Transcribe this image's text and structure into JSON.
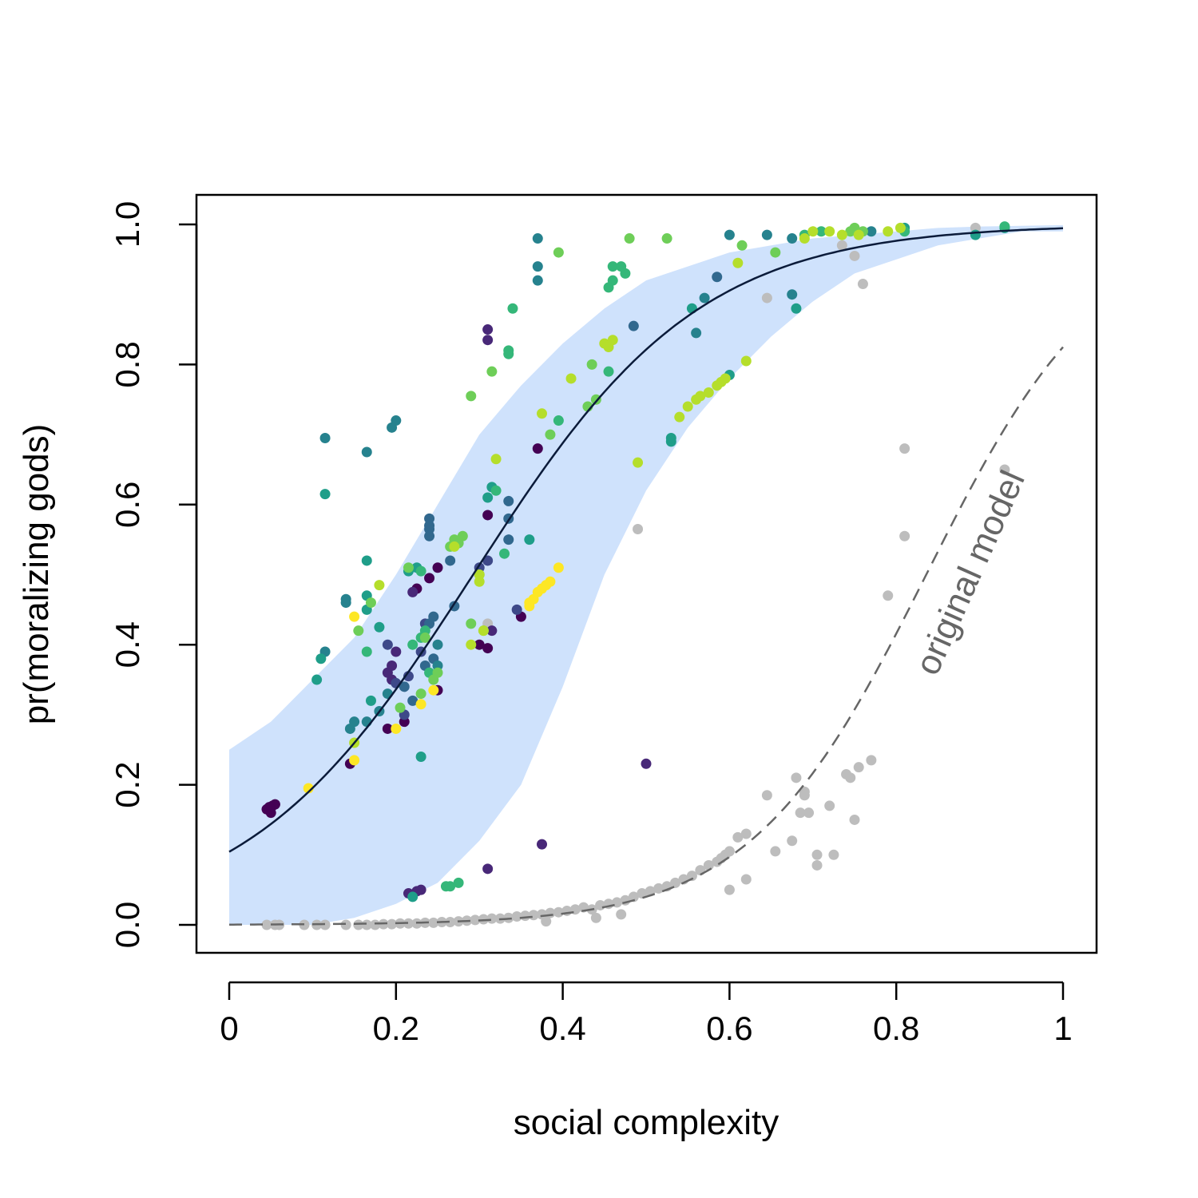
{
  "chart_data": {
    "type": "scatter",
    "xlabel": "social complexity",
    "ylabel": "pr(moralizing gods)",
    "xlim": [
      0,
      1
    ],
    "ylim": [
      0,
      1
    ],
    "x_ticks": [
      "0",
      "0.2",
      "0.4",
      "0.6",
      "0.8",
      "1"
    ],
    "y_ticks": [
      "0.0",
      "0.2",
      "0.4",
      "0.6",
      "0.8",
      "1.0"
    ],
    "annotation": "original model",
    "colors": {
      "band": "#cfe2fc",
      "fit_line": "#0b1b3a",
      "original_line": "#666666",
      "original_points": "#bdbdbd",
      "annotation": "#666666"
    },
    "fit_curve": {
      "type": "logistic",
      "intercept": -2.15,
      "slope": 7.35
    },
    "original_curve": {
      "type": "logistic",
      "intercept": -7.9,
      "slope": 9.45
    },
    "band": {
      "x": [
        0.0,
        0.05,
        0.1,
        0.15,
        0.2,
        0.25,
        0.3,
        0.35,
        0.4,
        0.45,
        0.5,
        0.55,
        0.6,
        0.65,
        0.7,
        0.75,
        0.8,
        0.85,
        0.9,
        0.95,
        1.0
      ],
      "upper": [
        0.25,
        0.29,
        0.35,
        0.41,
        0.5,
        0.6,
        0.7,
        0.77,
        0.83,
        0.88,
        0.92,
        0.94,
        0.96,
        0.97,
        0.98,
        0.985,
        0.99,
        0.995,
        0.997,
        0.998,
        0.999
      ],
      "lower": [
        0.0,
        0.0,
        0.0,
        0.01,
        0.03,
        0.06,
        0.12,
        0.2,
        0.34,
        0.5,
        0.62,
        0.71,
        0.78,
        0.84,
        0.89,
        0.93,
        0.95,
        0.97,
        0.98,
        0.99,
        0.99
      ]
    },
    "series": [
      {
        "color": "#440154",
        "points": [
          [
            0.045,
            0.165
          ],
          [
            0.05,
            0.16
          ],
          [
            0.052,
            0.17
          ],
          [
            0.055,
            0.172
          ],
          [
            0.048,
            0.168
          ],
          [
            0.145,
            0.23
          ],
          [
            0.19,
            0.28
          ],
          [
            0.21,
            0.29
          ],
          [
            0.225,
            0.48
          ],
          [
            0.24,
            0.495
          ],
          [
            0.25,
            0.51
          ],
          [
            0.25,
            0.335
          ],
          [
            0.31,
            0.395
          ],
          [
            0.31,
            0.585
          ],
          [
            0.35,
            0.44
          ],
          [
            0.37,
            0.68
          ],
          [
            0.3,
            0.4
          ]
        ]
      },
      {
        "color": "#482878",
        "points": [
          [
            0.19,
            0.36
          ],
          [
            0.195,
            0.37
          ],
          [
            0.2,
            0.39
          ],
          [
            0.215,
            0.045
          ],
          [
            0.225,
            0.048
          ],
          [
            0.23,
            0.05
          ],
          [
            0.22,
            0.475
          ],
          [
            0.31,
            0.85
          ],
          [
            0.31,
            0.835
          ],
          [
            0.5,
            0.23
          ],
          [
            0.375,
            0.115
          ],
          [
            0.31,
            0.08
          ],
          [
            0.315,
            0.42
          ],
          [
            0.195,
            0.35
          ]
        ]
      },
      {
        "color": "#3e4989",
        "points": [
          [
            0.19,
            0.4
          ],
          [
            0.2,
            0.345
          ],
          [
            0.23,
            0.39
          ],
          [
            0.235,
            0.43
          ],
          [
            0.31,
            0.52
          ],
          [
            0.21,
            0.3
          ],
          [
            0.215,
            0.355
          ],
          [
            0.345,
            0.45
          ],
          [
            0.3,
            0.51
          ]
        ]
      },
      {
        "color": "#31688e",
        "points": [
          [
            0.24,
            0.58
          ],
          [
            0.24,
            0.565
          ],
          [
            0.24,
            0.555
          ],
          [
            0.24,
            0.57
          ],
          [
            0.335,
            0.605
          ],
          [
            0.335,
            0.58
          ],
          [
            0.335,
            0.55
          ],
          [
            0.265,
            0.52
          ],
          [
            0.27,
            0.455
          ],
          [
            0.245,
            0.44
          ],
          [
            0.24,
            0.43
          ],
          [
            0.245,
            0.38
          ],
          [
            0.485,
            0.855
          ],
          [
            0.585,
            0.925
          ],
          [
            0.21,
            0.34
          ],
          [
            0.22,
            0.32
          ],
          [
            0.235,
            0.37
          ]
        ]
      },
      {
        "color": "#26828e",
        "points": [
          [
            0.115,
            0.695
          ],
          [
            0.165,
            0.675
          ],
          [
            0.195,
            0.71
          ],
          [
            0.2,
            0.72
          ],
          [
            0.37,
            0.98
          ],
          [
            0.37,
            0.94
          ],
          [
            0.37,
            0.92
          ],
          [
            0.6,
            0.985
          ],
          [
            0.645,
            0.985
          ],
          [
            0.675,
            0.98
          ],
          [
            0.675,
            0.9
          ],
          [
            0.14,
            0.465
          ],
          [
            0.145,
            0.28
          ],
          [
            0.15,
            0.29
          ],
          [
            0.165,
            0.29
          ],
          [
            0.18,
            0.305
          ],
          [
            0.19,
            0.33
          ],
          [
            0.115,
            0.39
          ],
          [
            0.14,
            0.46
          ],
          [
            0.25,
            0.4
          ],
          [
            0.25,
            0.37
          ],
          [
            0.56,
            0.845
          ],
          [
            0.57,
            0.895
          ],
          [
            0.77,
            0.99
          ]
        ]
      },
      {
        "color": "#1f9e89",
        "points": [
          [
            0.11,
            0.38
          ],
          [
            0.105,
            0.35
          ],
          [
            0.115,
            0.615
          ],
          [
            0.165,
            0.47
          ],
          [
            0.165,
            0.52
          ],
          [
            0.165,
            0.45
          ],
          [
            0.17,
            0.32
          ],
          [
            0.18,
            0.425
          ],
          [
            0.23,
            0.24
          ],
          [
            0.22,
            0.04
          ],
          [
            0.215,
            0.505
          ],
          [
            0.225,
            0.51
          ],
          [
            0.31,
            0.61
          ],
          [
            0.315,
            0.625
          ],
          [
            0.53,
            0.69
          ],
          [
            0.53,
            0.695
          ],
          [
            0.6,
            0.785
          ],
          [
            0.555,
            0.88
          ],
          [
            0.68,
            0.88
          ],
          [
            0.895,
            0.985
          ],
          [
            0.93,
            0.995
          ],
          [
            0.81,
            0.995
          ],
          [
            0.36,
            0.55
          ]
        ]
      },
      {
        "color": "#35b779",
        "points": [
          [
            0.165,
            0.39
          ],
          [
            0.22,
            0.4
          ],
          [
            0.23,
            0.41
          ],
          [
            0.235,
            0.42
          ],
          [
            0.23,
            0.505
          ],
          [
            0.24,
            0.36
          ],
          [
            0.26,
            0.055
          ],
          [
            0.265,
            0.055
          ],
          [
            0.275,
            0.06
          ],
          [
            0.335,
            0.815
          ],
          [
            0.335,
            0.82
          ],
          [
            0.32,
            0.62
          ],
          [
            0.33,
            0.53
          ],
          [
            0.34,
            0.88
          ],
          [
            0.455,
            0.79
          ],
          [
            0.46,
            0.92
          ],
          [
            0.475,
            0.93
          ],
          [
            0.395,
            0.72
          ],
          [
            0.455,
            0.91
          ],
          [
            0.46,
            0.94
          ],
          [
            0.47,
            0.94
          ],
          [
            0.69,
            0.985
          ],
          [
            0.71,
            0.99
          ],
          [
            0.81,
            0.99
          ],
          [
            0.93,
            0.997
          ]
        ]
      },
      {
        "color": "#6ece58",
        "points": [
          [
            0.155,
            0.42
          ],
          [
            0.17,
            0.46
          ],
          [
            0.205,
            0.31
          ],
          [
            0.215,
            0.51
          ],
          [
            0.23,
            0.33
          ],
          [
            0.235,
            0.41
          ],
          [
            0.245,
            0.35
          ],
          [
            0.25,
            0.36
          ],
          [
            0.265,
            0.54
          ],
          [
            0.27,
            0.55
          ],
          [
            0.28,
            0.555
          ],
          [
            0.29,
            0.43
          ],
          [
            0.3,
            0.5
          ],
          [
            0.305,
            0.42
          ],
          [
            0.315,
            0.79
          ],
          [
            0.395,
            0.96
          ],
          [
            0.385,
            0.7
          ],
          [
            0.43,
            0.74
          ],
          [
            0.435,
            0.8
          ],
          [
            0.44,
            0.75
          ],
          [
            0.48,
            0.98
          ],
          [
            0.525,
            0.98
          ],
          [
            0.615,
            0.97
          ],
          [
            0.655,
            0.96
          ],
          [
            0.745,
            0.99
          ],
          [
            0.75,
            0.995
          ],
          [
            0.76,
            0.99
          ],
          [
            0.275,
            0.545
          ],
          [
            0.29,
            0.755
          ]
        ]
      },
      {
        "color": "#b5de2b",
        "points": [
          [
            0.18,
            0.485
          ],
          [
            0.15,
            0.26
          ],
          [
            0.27,
            0.54
          ],
          [
            0.29,
            0.4
          ],
          [
            0.3,
            0.49
          ],
          [
            0.305,
            0.42
          ],
          [
            0.41,
            0.78
          ],
          [
            0.45,
            0.83
          ],
          [
            0.455,
            0.825
          ],
          [
            0.46,
            0.835
          ],
          [
            0.54,
            0.725
          ],
          [
            0.55,
            0.74
          ],
          [
            0.56,
            0.75
          ],
          [
            0.565,
            0.755
          ],
          [
            0.575,
            0.76
          ],
          [
            0.585,
            0.77
          ],
          [
            0.59,
            0.775
          ],
          [
            0.595,
            0.78
          ],
          [
            0.62,
            0.805
          ],
          [
            0.61,
            0.945
          ],
          [
            0.7,
            0.99
          ],
          [
            0.72,
            0.99
          ],
          [
            0.735,
            0.985
          ],
          [
            0.755,
            0.985
          ],
          [
            0.79,
            0.99
          ],
          [
            0.805,
            0.995
          ],
          [
            0.69,
            0.98
          ],
          [
            0.49,
            0.66
          ],
          [
            0.375,
            0.73
          ],
          [
            0.32,
            0.665
          ],
          [
            0.3,
            0.5
          ]
        ]
      },
      {
        "color": "#fde725",
        "points": [
          [
            0.095,
            0.195
          ],
          [
            0.15,
            0.235
          ],
          [
            0.15,
            0.44
          ],
          [
            0.2,
            0.28
          ],
          [
            0.23,
            0.315
          ],
          [
            0.245,
            0.335
          ],
          [
            0.36,
            0.46
          ],
          [
            0.365,
            0.465
          ],
          [
            0.37,
            0.475
          ],
          [
            0.375,
            0.48
          ],
          [
            0.38,
            0.485
          ],
          [
            0.385,
            0.49
          ],
          [
            0.395,
            0.51
          ],
          [
            0.36,
            0.455
          ]
        ]
      }
    ],
    "original_points": [
      [
        0.045,
        0.0
      ],
      [
        0.055,
        0.0
      ],
      [
        0.06,
        0.0
      ],
      [
        0.09,
        0.0
      ],
      [
        0.105,
        0.0
      ],
      [
        0.115,
        0.0
      ],
      [
        0.14,
        0.0
      ],
      [
        0.155,
        0.0
      ],
      [
        0.165,
        0.0
      ],
      [
        0.175,
        0.0
      ],
      [
        0.185,
        0.001
      ],
      [
        0.195,
        0.001
      ],
      [
        0.205,
        0.002
      ],
      [
        0.215,
        0.002
      ],
      [
        0.225,
        0.002
      ],
      [
        0.235,
        0.003
      ],
      [
        0.245,
        0.003
      ],
      [
        0.255,
        0.004
      ],
      [
        0.265,
        0.004
      ],
      [
        0.275,
        0.005
      ],
      [
        0.285,
        0.006
      ],
      [
        0.295,
        0.007
      ],
      [
        0.305,
        0.008
      ],
      [
        0.315,
        0.009
      ],
      [
        0.325,
        0.009
      ],
      [
        0.335,
        0.01
      ],
      [
        0.345,
        0.012
      ],
      [
        0.355,
        0.013
      ],
      [
        0.365,
        0.014
      ],
      [
        0.375,
        0.015
      ],
      [
        0.385,
        0.017
      ],
      [
        0.395,
        0.018
      ],
      [
        0.405,
        0.02
      ],
      [
        0.415,
        0.022
      ],
      [
        0.425,
        0.025
      ],
      [
        0.435,
        0.022
      ],
      [
        0.445,
        0.028
      ],
      [
        0.455,
        0.03
      ],
      [
        0.465,
        0.032
      ],
      [
        0.475,
        0.035
      ],
      [
        0.485,
        0.04
      ],
      [
        0.495,
        0.045
      ],
      [
        0.505,
        0.048
      ],
      [
        0.515,
        0.052
      ],
      [
        0.525,
        0.055
      ],
      [
        0.535,
        0.06
      ],
      [
        0.545,
        0.065
      ],
      [
        0.555,
        0.07
      ],
      [
        0.565,
        0.078
      ],
      [
        0.575,
        0.085
      ],
      [
        0.585,
        0.09
      ],
      [
        0.59,
        0.095
      ],
      [
        0.595,
        0.1
      ],
      [
        0.6,
        0.105
      ],
      [
        0.6,
        0.05
      ],
      [
        0.61,
        0.125
      ],
      [
        0.62,
        0.13
      ],
      [
        0.62,
        0.065
      ],
      [
        0.645,
        0.185
      ],
      [
        0.645,
        0.895
      ],
      [
        0.655,
        0.105
      ],
      [
        0.675,
        0.12
      ],
      [
        0.68,
        0.21
      ],
      [
        0.685,
        0.16
      ],
      [
        0.69,
        0.185
      ],
      [
        0.69,
        0.19
      ],
      [
        0.695,
        0.16
      ],
      [
        0.705,
        0.1
      ],
      [
        0.705,
        0.085
      ],
      [
        0.72,
        0.17
      ],
      [
        0.725,
        0.1
      ],
      [
        0.74,
        0.215
      ],
      [
        0.745,
        0.21
      ],
      [
        0.75,
        0.15
      ],
      [
        0.755,
        0.225
      ],
      [
        0.77,
        0.235
      ],
      [
        0.79,
        0.47
      ],
      [
        0.81,
        0.68
      ],
      [
        0.81,
        0.555
      ],
      [
        0.75,
        0.955
      ],
      [
        0.76,
        0.915
      ],
      [
        0.735,
        0.97
      ],
      [
        0.895,
        0.995
      ],
      [
        0.93,
        0.65
      ],
      [
        0.49,
        0.565
      ],
      [
        0.31,
        0.43
      ],
      [
        0.47,
        0.015
      ],
      [
        0.44,
        0.01
      ],
      [
        0.38,
        0.005
      ]
    ]
  }
}
